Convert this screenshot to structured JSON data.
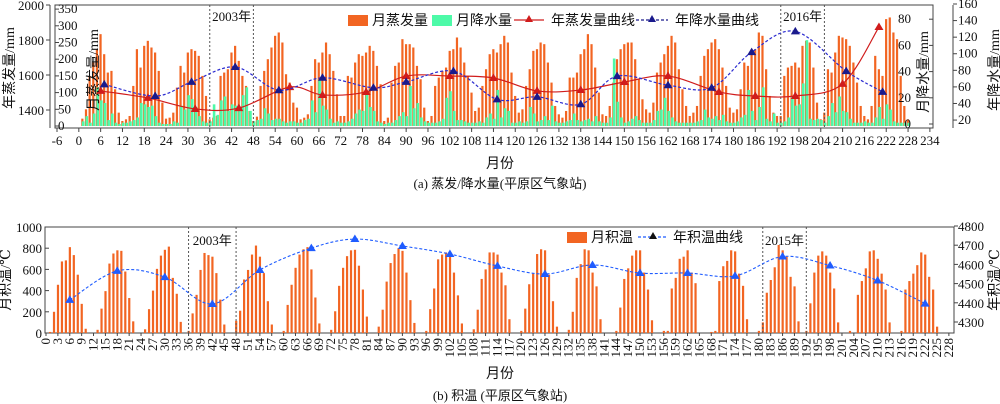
{
  "chart_data": [
    {
      "type": "bar",
      "title": "(a) 蒸发/降水量(平原区气象站)",
      "xlabel": "月份",
      "ylabel_left_outer": "年蒸发量/mm",
      "ylabel_left_inner": "月蒸发量/mm",
      "ylabel_right_inner": "月降水量/mm",
      "ylabel_right_outer": "年降水量/mm",
      "xlim": [
        -6,
        234
      ],
      "x_ticks": {
        "start": -6,
        "end": 234,
        "step": 6
      },
      "ylim_left_outer": [
        1300,
        2000
      ],
      "yticks_left_outer": [
        1400,
        1600,
        1800,
        2000
      ],
      "ylim_left_inner": [
        0,
        350
      ],
      "yticks_left_inner": [
        0,
        50,
        100,
        150,
        200,
        250,
        300,
        350
      ],
      "ylim_right_inner": [
        0,
        80
      ],
      "yticks_right_inner": [
        0,
        20,
        40,
        60,
        80
      ],
      "ylim_right_outer": [
        20,
        160
      ],
      "yticks_right_outer": [
        20,
        40,
        60,
        80,
        100,
        120,
        140,
        160
      ],
      "legend": [
        "月蒸发量",
        "月降水量",
        "年蒸发量曲线",
        "年降水量曲线"
      ],
      "legend_position": "top-center",
      "annotations": [
        {
          "text": "2003年",
          "from_month": 36,
          "to_month": 48
        },
        {
          "text": "2016年",
          "from_month": 193,
          "to_month": 205
        }
      ],
      "colors": {
        "evap": "#f26522",
        "precip": "#4dfaa8",
        "evap_curve": "#d01c1c",
        "precip_curve": "#1a1a8c"
      },
      "monthly_evaporation_by_year": [
        [
          22,
          50,
          150,
          190,
          230,
          275,
          215,
          160,
          165,
          110,
          40,
          15
        ],
        [
          20,
          30,
          120,
          230,
          175,
          240,
          255,
          235,
          220,
          165,
          70,
          22
        ],
        [
          25,
          40,
          115,
          180,
          160,
          220,
          230,
          225,
          210,
          150,
          90,
          20
        ],
        [
          25,
          30,
          150,
          160,
          170,
          220,
          240,
          195,
          150,
          120,
          45,
          15
        ],
        [
          28,
          120,
          165,
          200,
          235,
          270,
          280,
          250,
          155,
          130,
          70,
          55
        ],
        [
          20,
          25,
          35,
          120,
          200,
          190,
          220,
          250,
          215,
          165,
          95,
          30
        ],
        [
          30,
          150,
          145,
          190,
          215,
          210,
          220,
          240,
          225,
          180,
          125,
          15
        ],
        [
          25,
          130,
          180,
          190,
          260,
          245,
          245,
          235,
          180,
          140,
          55,
          15
        ],
        [
          30,
          120,
          145,
          165,
          175,
          225,
          230,
          265,
          235,
          190,
          150,
          100
        ],
        [
          45,
          55,
          120,
          170,
          215,
          230,
          220,
          245,
          270,
          250,
          160,
          90
        ],
        [
          40,
          50,
          120,
          170,
          225,
          230,
          250,
          245,
          190,
          130,
          60,
          35
        ],
        [
          25,
          45,
          145,
          145,
          160,
          215,
          230,
          275,
          245,
          175,
          100,
          35
        ],
        [
          30,
          60,
          130,
          200,
          230,
          245,
          250,
          250,
          200,
          140,
          80,
          50
        ],
        [
          40,
          70,
          160,
          190,
          215,
          240,
          270,
          250,
          170,
          110,
          60,
          30
        ],
        [
          40,
          60,
          150,
          210,
          230,
          250,
          260,
          230,
          175,
          120,
          55,
          40
        ],
        [
          50,
          110,
          190,
          180,
          230,
          230,
          280,
          270,
          170,
          90,
          40,
          30
        ],
        [
          30,
          150,
          175,
          180,
          190,
          175,
          240,
          255,
          250,
          175,
          70,
          20
        ],
        [
          40,
          170,
          160,
          220,
          270,
          265,
          260,
          240,
          190,
          130,
          60,
          30
        ],
        [
          20,
          60,
          210,
          170,
          150,
          320,
          325,
          280,
          260,
          150,
          60,
          20
        ]
      ],
      "monthly_precipitation_by_year": [
        [
          2,
          6,
          1,
          8,
          28,
          18,
          16,
          3,
          8,
          1,
          0,
          1
        ],
        [
          1,
          2,
          3,
          5,
          16,
          15,
          13,
          14,
          6,
          1,
          0,
          0
        ],
        [
          0,
          2,
          1,
          14,
          11,
          22,
          19,
          13,
          6,
          2,
          1,
          2
        ],
        [
          15,
          7,
          18,
          21,
          10,
          15,
          14,
          12,
          22,
          28,
          10,
          2
        ],
        [
          3,
          4,
          12,
          8,
          3,
          4,
          4,
          2,
          1,
          2,
          2,
          1
        ],
        [
          1,
          3,
          4,
          18,
          9,
          34,
          14,
          11,
          4,
          1,
          2,
          1
        ],
        [
          1,
          2,
          4,
          8,
          11,
          10,
          24,
          13,
          10,
          2,
          1,
          0
        ],
        [
          1,
          1,
          3,
          6,
          9,
          6,
          29,
          12,
          16,
          5,
          2,
          1
        ],
        [
          1,
          1,
          2,
          4,
          20,
          25,
          10,
          3,
          3,
          2,
          1,
          1
        ],
        [
          1,
          2,
          1,
          5,
          8,
          4,
          26,
          5,
          12,
          10,
          1,
          1
        ],
        [
          2,
          1,
          2,
          13,
          8,
          2,
          3,
          6,
          3,
          14,
          2,
          1
        ],
        [
          1,
          2,
          3,
          8,
          3,
          2,
          3,
          4,
          2,
          6,
          2,
          1
        ],
        [
          1,
          5,
          50,
          17,
          5,
          1,
          2,
          4,
          6,
          3,
          1,
          1
        ],
        [
          1,
          3,
          10,
          11,
          20,
          10,
          5,
          2,
          1,
          1,
          1,
          1
        ],
        [
          1,
          2,
          3,
          11,
          5,
          4,
          6,
          3,
          7,
          2,
          1,
          1
        ],
        [
          2,
          5,
          7,
          26,
          10,
          3,
          13,
          28,
          4,
          2,
          8,
          1
        ],
        [
          1,
          2,
          5,
          21,
          14,
          15,
          31,
          64,
          4,
          3,
          4,
          3
        ],
        [
          1,
          6,
          16,
          9,
          21,
          10,
          9,
          4,
          1,
          1,
          1,
          2
        ],
        [
          1,
          1,
          5,
          13,
          4,
          15,
          11,
          2,
          1,
          1,
          1,
          1
        ]
      ],
      "annual_evaporation": [
        {
          "month": 6,
          "value": 1509
        },
        {
          "month": 19,
          "value": 1469
        },
        {
          "month": 32,
          "value": 1406
        },
        {
          "month": 44,
          "value": 1411
        },
        {
          "month": 58,
          "value": 1531
        },
        {
          "month": 67,
          "value": 1486
        },
        {
          "month": 79,
          "value": 1503
        },
        {
          "month": 90,
          "value": 1594
        },
        {
          "month": 102,
          "value": 1594
        },
        {
          "month": 114,
          "value": 1583
        },
        {
          "month": 126,
          "value": 1509
        },
        {
          "month": 138,
          "value": 1514
        },
        {
          "month": 150,
          "value": 1560
        },
        {
          "month": 162,
          "value": 1594
        },
        {
          "month": 176,
          "value": 1503
        },
        {
          "month": 186,
          "value": 1480
        },
        {
          "month": 197,
          "value": 1480
        },
        {
          "month": 210,
          "value": 1549
        },
        {
          "month": 220,
          "value": 1874
        }
      ],
      "annual_precipitation": [
        {
          "month": 7,
          "value": 63
        },
        {
          "month": 21,
          "value": 49
        },
        {
          "month": 31,
          "value": 66
        },
        {
          "month": 43,
          "value": 84
        },
        {
          "month": 55,
          "value": 56
        },
        {
          "month": 67,
          "value": 71
        },
        {
          "month": 81,
          "value": 59
        },
        {
          "month": 90,
          "value": 66
        },
        {
          "month": 103,
          "value": 79
        },
        {
          "month": 115,
          "value": 45
        },
        {
          "month": 126,
          "value": 48
        },
        {
          "month": 138,
          "value": 39
        },
        {
          "month": 148,
          "value": 73
        },
        {
          "month": 162,
          "value": 62
        },
        {
          "month": 174,
          "value": 59
        },
        {
          "month": 185,
          "value": 102
        },
        {
          "month": 197,
          "value": 127
        },
        {
          "month": 211,
          "value": 79
        },
        {
          "month": 221,
          "value": 54
        }
      ]
    },
    {
      "type": "bar",
      "title": "(b) 积温 (平原区气象站)",
      "xlabel": "月份",
      "ylabel_left": "月积温/℃",
      "ylabel_right": "年积温/℃",
      "xlim": [
        0,
        230
      ],
      "x_ticks": {
        "start": 0,
        "end": 228,
        "step": 3
      },
      "ylim_left": [
        0,
        1000
      ],
      "yticks_left": [
        0,
        200,
        400,
        600,
        800,
        1000
      ],
      "ylim_right": [
        4243,
        4800
      ],
      "yticks_right": [
        4300,
        4400,
        4500,
        4600,
        4700,
        4800
      ],
      "legend": [
        "月积温",
        "年积温曲线"
      ],
      "legend_position": "top-center",
      "annotations": [
        {
          "text": "2003年",
          "from_month": 36,
          "to_month": 48
        },
        {
          "text": "2015年",
          "from_month": 181,
          "to_month": 192
        }
      ],
      "colors": {
        "bars": "#f26522",
        "curve": "#1f5cff"
      },
      "monthly_accumulated_temperature_by_year": [
        [
          10,
          200,
          455,
          675,
          685,
          810,
          735,
          550,
          275,
          40,
          0,
          0
        ],
        [
          30,
          230,
          395,
          655,
          750,
          780,
          775,
          580,
          330,
          110,
          0,
          0
        ],
        [
          35,
          225,
          400,
          605,
          730,
          785,
          815,
          520,
          370,
          105,
          0,
          20
        ],
        [
          185,
          360,
          595,
          755,
          735,
          720,
          565,
          315,
          80,
          0,
          0,
          115
        ],
        [
          210,
          505,
          595,
          740,
          825,
          720,
          565,
          300,
          80,
          0,
          0,
          20
        ],
        [
          265,
          455,
          615,
          740,
          790,
          810,
          600,
          335,
          90,
          0,
          0,
          30
        ],
        [
          205,
          445,
          615,
          725,
          780,
          785,
          635,
          410,
          155,
          0,
          0,
          60
        ],
        [
          220,
          485,
          660,
          745,
          800,
          775,
          570,
          310,
          95,
          0,
          0,
          20
        ],
        [
          225,
          420,
          695,
          740,
          760,
          745,
          570,
          355,
          90,
          0,
          0,
          35
        ],
        [
          220,
          510,
          600,
          760,
          760,
          740,
          570,
          450,
          130,
          0,
          0,
          20
        ],
        [
          230,
          460,
          560,
          745,
          790,
          780,
          550,
          300,
          60,
          0,
          0,
          30
        ],
        [
          200,
          520,
          650,
          790,
          780,
          570,
          440,
          130,
          0,
          0,
          0,
          20
        ],
        [
          240,
          510,
          610,
          730,
          780,
          780,
          570,
          410,
          120,
          0,
          0,
          20
        ],
        [
          20,
          420,
          520,
          700,
          720,
          780,
          570,
          470,
          0,
          0,
          0,
          10
        ],
        [
          20,
          490,
          630,
          680,
          780,
          770,
          560,
          445,
          130,
          0,
          0,
          20
        ],
        [
          100,
          380,
          500,
          620,
          830,
          780,
          720,
          530,
          440,
          110,
          0,
          20
        ],
        [
          280,
          570,
          730,
          770,
          730,
          570,
          420,
          100,
          0,
          0,
          20,
          0
        ],
        [
          360,
          490,
          610,
          770,
          780,
          700,
          560,
          410,
          100,
          0,
          0,
          20
        ],
        [
          410,
          490,
          560,
          640,
          760,
          740,
          530,
          410,
          60,
          0,
          0,
          0
        ]
      ],
      "annual_accumulated_temperature": [
        {
          "month": 6,
          "value": 4415
        },
        {
          "month": 18,
          "value": 4566
        },
        {
          "month": 30,
          "value": 4534
        },
        {
          "month": 42,
          "value": 4394
        },
        {
          "month": 54,
          "value": 4571
        },
        {
          "month": 67,
          "value": 4685
        },
        {
          "month": 78,
          "value": 4732
        },
        {
          "month": 90,
          "value": 4696
        },
        {
          "month": 102,
          "value": 4654
        },
        {
          "month": 114,
          "value": 4592
        },
        {
          "month": 126,
          "value": 4550
        },
        {
          "month": 138,
          "value": 4597
        },
        {
          "month": 150,
          "value": 4555
        },
        {
          "month": 162,
          "value": 4555
        },
        {
          "month": 174,
          "value": 4540
        },
        {
          "month": 186,
          "value": 4641
        },
        {
          "month": 198,
          "value": 4594
        },
        {
          "month": 210,
          "value": 4516
        },
        {
          "month": 222,
          "value": 4396
        }
      ]
    }
  ]
}
